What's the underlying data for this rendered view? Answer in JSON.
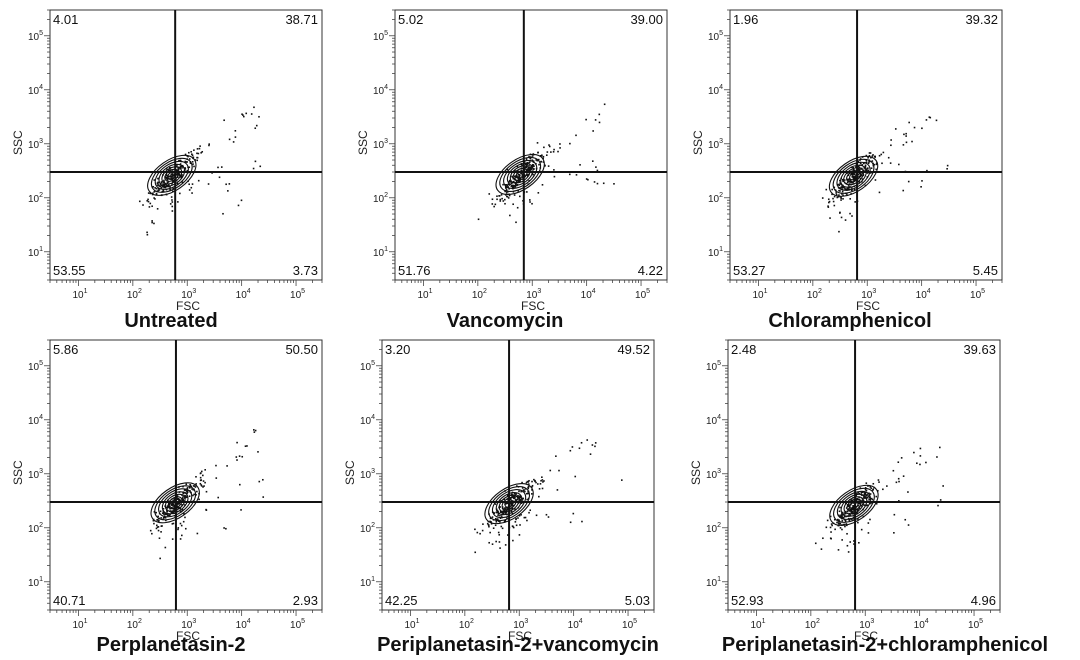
{
  "chart_data": [
    {
      "type": "scatter",
      "title": "Untreated",
      "xlabel": "FSC",
      "ylabel": "SSC",
      "xscale": "log",
      "yscale": "log",
      "xlim": [
        3,
        300000
      ],
      "ylim": [
        3,
        300000
      ],
      "x_ticks": [
        "10^1",
        "10^2",
        "10^3",
        "10^4",
        "10^5"
      ],
      "y_ticks": [
        "10^1",
        "10^2",
        "10^3",
        "10^4",
        "10^5"
      ],
      "gate": {
        "x": 600,
        "y": 300
      },
      "quadrants": {
        "upper_left": "4.01",
        "upper_right": "38.71",
        "lower_left": "53.55",
        "lower_right": "3.73"
      },
      "population_center": [
        520,
        260
      ]
    },
    {
      "type": "scatter",
      "title": "Vancomycin",
      "xlabel": "FSC",
      "ylabel": "SSC",
      "xscale": "log",
      "yscale": "log",
      "xlim": [
        3,
        300000
      ],
      "ylim": [
        3,
        300000
      ],
      "x_ticks": [
        "10^1",
        "10^2",
        "10^3",
        "10^4",
        "10^5"
      ],
      "y_ticks": [
        "10^1",
        "10^2",
        "10^3",
        "10^4",
        "10^5"
      ],
      "gate": {
        "x": 700,
        "y": 300
      },
      "quadrants": {
        "upper_left": "5.02",
        "upper_right": "39.00",
        "lower_left": "51.76",
        "lower_right": "4.22"
      },
      "population_center": [
        600,
        270
      ]
    },
    {
      "type": "scatter",
      "title": "Chloramphenicol",
      "xlabel": "FSC",
      "ylabel": "SSC",
      "xscale": "log",
      "yscale": "log",
      "xlim": [
        3,
        300000
      ],
      "ylim": [
        3,
        300000
      ],
      "x_ticks": [
        "10^1",
        "10^2",
        "10^3",
        "10^4",
        "10^5"
      ],
      "y_ticks": [
        "10^1",
        "10^2",
        "10^3",
        "10^4",
        "10^5"
      ],
      "gate": {
        "x": 650,
        "y": 300
      },
      "quadrants": {
        "upper_left": "1.96",
        "upper_right": "39.32",
        "lower_left": "53.27",
        "lower_right": "5.45"
      },
      "population_center": [
        560,
        250
      ]
    },
    {
      "type": "scatter",
      "title": "Perplanetasin-2",
      "xlabel": "FSC",
      "ylabel": "SSC",
      "xscale": "log",
      "yscale": "log",
      "xlim": [
        3,
        300000
      ],
      "ylim": [
        3,
        300000
      ],
      "x_ticks": [
        "10^1",
        "10^2",
        "10^3",
        "10^4",
        "10^5"
      ],
      "y_ticks": [
        "10^1",
        "10^2",
        "10^3",
        "10^4",
        "10^5"
      ],
      "gate": {
        "x": 620,
        "y": 300
      },
      "quadrants": {
        "upper_left": "5.86",
        "upper_right": "50.50",
        "lower_left": "40.71",
        "lower_right": "2.93"
      },
      "population_center": [
        600,
        290
      ]
    },
    {
      "type": "scatter",
      "title": "Periplanetasin-2+vancomycin",
      "xlabel": "FSC",
      "ylabel": "SSC",
      "xscale": "log",
      "yscale": "log",
      "xlim": [
        3,
        300000
      ],
      "ylim": [
        3,
        300000
      ],
      "x_ticks": [
        "10^1",
        "10^2",
        "10^3",
        "10^4",
        "10^5"
      ],
      "y_ticks": [
        "10^1",
        "10^2",
        "10^3",
        "10^4",
        "10^5"
      ],
      "gate": {
        "x": 650,
        "y": 300
      },
      "quadrants": {
        "upper_left": "3.20",
        "upper_right": "49.52",
        "lower_left": "42.25",
        "lower_right": "5.03"
      },
      "population_center": [
        650,
        280
      ]
    },
    {
      "type": "scatter",
      "title": "Periplanetasin-2+chloramphenicol",
      "xlabel": "FSC",
      "ylabel": "SSC",
      "xscale": "log",
      "yscale": "log",
      "xlim": [
        3,
        300000
      ],
      "ylim": [
        3,
        300000
      ],
      "x_ticks": [
        "10^1",
        "10^2",
        "10^3",
        "10^4",
        "10^5"
      ],
      "y_ticks": [
        "10^1",
        "10^2",
        "10^3",
        "10^4",
        "10^5"
      ],
      "gate": {
        "x": 650,
        "y": 300
      },
      "quadrants": {
        "upper_left": "2.48",
        "upper_right": "39.63",
        "lower_left": "52.93",
        "lower_right": "4.96"
      },
      "population_center": [
        620,
        260
      ]
    }
  ]
}
